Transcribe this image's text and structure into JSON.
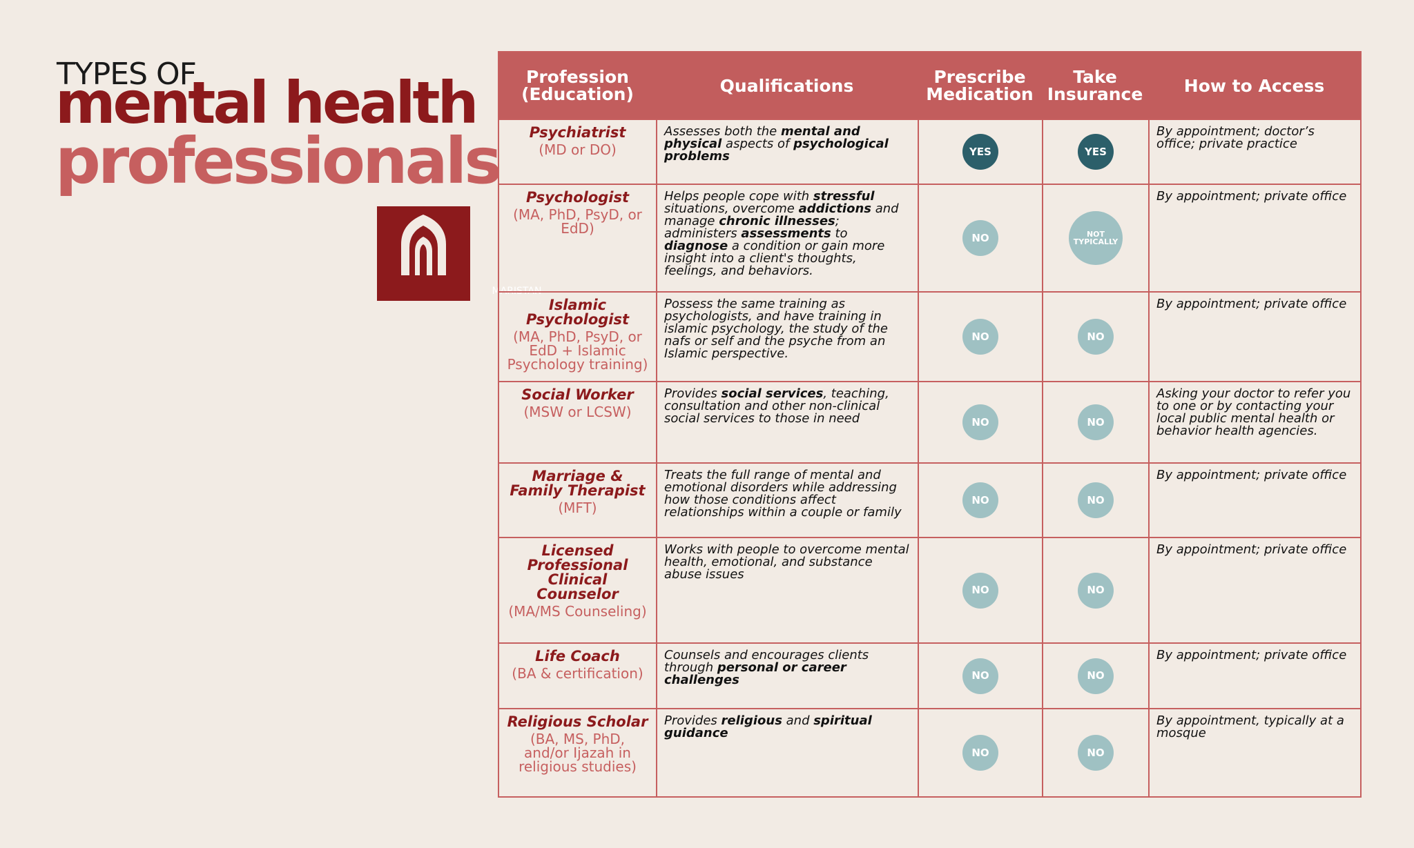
{
  "header": {
    "title_line1": "TYPES OF",
    "title_line2": "mental health",
    "title_line3": "professionals",
    "logo": "MARISTAN"
  },
  "table": {
    "columns": [
      "Profession (Education)",
      "Qualifications",
      "Prescribe Medication",
      "Take Insurance",
      "How to Access"
    ],
    "rows": [
      {
        "profession": "Psychiatrist",
        "education": "(MD or DO)",
        "qualifications": [
          "Assesses both the ",
          "mental and physical",
          " aspects of ",
          "psychological problems"
        ],
        "prescribe": {
          "label": "YES",
          "color": "#2c5f6a"
        },
        "insurance": {
          "label": "YES",
          "color": "#2c5f6a"
        },
        "access": "By appointment; doctor’s office; private practice"
      },
      {
        "profession": "Psychologist",
        "education": "(MA, PhD, PsyD, or EdD)",
        "qualifications": [
          "Helps people cope with ",
          "stressful",
          " situations, overcome ",
          "addictions",
          " and manage ",
          "chronic illnesses",
          "; administers ",
          "assessments",
          " to ",
          "diagnose",
          " a condition or gain more insight into a client's thoughts, feelings, and behaviors."
        ],
        "prescribe": {
          "label": "NO",
          "color": "#9fc1c3"
        },
        "insurance": {
          "label": "NOT TYPICALLY",
          "color": "#9fc1c3"
        },
        "access": "By appointment; private office"
      },
      {
        "profession": "Islamic Psychologist",
        "education": "(MA, PhD, PsyD, or EdD + Islamic Psychology training)",
        "qualifications": [
          "Possess the same training as psychologists, and have training in islamic psychology, the study of the nafs or self and the psyche from an Islamic perspective."
        ],
        "prescribe": {
          "label": "NO",
          "color": "#9fc1c3"
        },
        "insurance": {
          "label": "NO",
          "color": "#9fc1c3"
        },
        "access": "By appointment; private office"
      },
      {
        "profession": "Social Worker",
        "education": "(MSW or LCSW)",
        "qualifications": [
          "Provides ",
          "social services",
          ", teaching, consultation and other non-clinical social services to those in need"
        ],
        "prescribe": {
          "label": "NO",
          "color": "#9fc1c3"
        },
        "insurance": {
          "label": "NO",
          "color": "#9fc1c3"
        },
        "access": "Asking your doctor to refer you to one or by contacting your local public mental health or behavior health agencies."
      },
      {
        "profession": "Marriage & Family Therapist",
        "education": "(MFT)",
        "qualifications": [
          "Treats the full range of mental and emotional disorders while addressing how those conditions affect relationships within a couple or family"
        ],
        "prescribe": {
          "label": "NO",
          "color": "#9fc1c3"
        },
        "insurance": {
          "label": "NO",
          "color": "#9fc1c3"
        },
        "access": "By appointment; private office"
      },
      {
        "profession": "Licensed Professional Clinical Counselor",
        "education": "(MA/MS Counseling)",
        "qualifications": [
          "Works with people to overcome mental health, emotional, and substance abuse issues"
        ],
        "prescribe": {
          "label": "NO",
          "color": "#9fc1c3"
        },
        "insurance": {
          "label": "NO",
          "color": "#9fc1c3"
        },
        "access": "By appointment; private office"
      },
      {
        "profession": "Life Coach",
        "education": "(BA & certification)",
        "qualifications": [
          "Counsels and encourages clients through ",
          "personal or career challenges"
        ],
        "prescribe": {
          "label": "NO",
          "color": "#9fc1c3"
        },
        "insurance": {
          "label": "NO",
          "color": "#9fc1c3"
        },
        "access": "By appointment; private office"
      },
      {
        "profession": "Religious Scholar",
        "education": "(BA, MS, PhD, and/or Ijazah in religious studies)",
        "qualifications": [
          "Provides ",
          "religious",
          " and ",
          "spiritual guidance"
        ],
        "prescribe": {
          "label": "NO",
          "color": "#9fc1c3"
        },
        "insurance": {
          "label": "NO",
          "color": "#9fc1c3"
        },
        "access": "By appointment, typically at a mosque"
      }
    ]
  }
}
